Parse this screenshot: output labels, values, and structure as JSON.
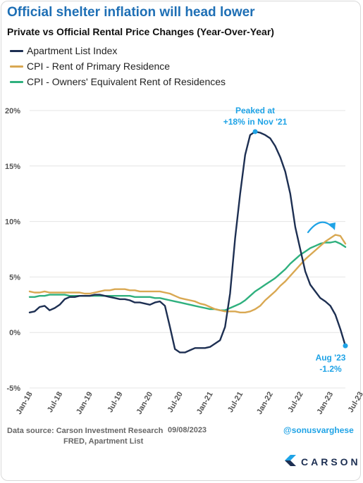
{
  "header": {
    "title": "Official shelter inflation will head lower",
    "subtitle": "Private vs Official Rental Price Changes (Year-Over-Year)"
  },
  "footer": {
    "source_line1": "Data source: Carson Investment Research",
    "source_date": "09/08/2023",
    "source_line2": "FRED, Apartment List",
    "handle": "@sonusvarghese",
    "brand": "CARSON"
  },
  "annotations": {
    "peak_line1": "Peaked at",
    "peak_line2": "+18% in Nov '21",
    "end_line1": "Aug '23",
    "end_line2": "-1.2%"
  },
  "colors": {
    "apartment": "#1d2f52",
    "cpi_rent": "#d9a852",
    "cpi_oer": "#2fb07e",
    "accent": "#1fa3e6",
    "title": "#1e6fb5"
  },
  "chart_data": {
    "type": "line",
    "x_start": "2018-01",
    "x_end": "2023-08",
    "x_tick_labels": [
      "Jan-18",
      "Jul-18",
      "Jan-19",
      "Jul-19",
      "Jan-20",
      "Jul-20",
      "Jan-21",
      "Jul-21",
      "Jan-22",
      "Jul-22",
      "Jan-23",
      "Jul-23"
    ],
    "y_tick_labels": [
      "20%",
      "15%",
      "10%",
      "5%",
      "0%",
      "-5%"
    ],
    "ylim": [
      -5,
      20
    ],
    "grid": "horizontal",
    "legend_position": "top-left",
    "series": [
      {
        "name": "Apartment List Index",
        "values": [
          1.8,
          1.9,
          2.3,
          2.4,
          2.0,
          2.2,
          2.5,
          3.0,
          3.2,
          3.2,
          3.3,
          3.3,
          3.3,
          3.4,
          3.4,
          3.3,
          3.2,
          3.1,
          3.0,
          3.0,
          2.9,
          2.7,
          2.7,
          2.6,
          2.5,
          2.7,
          2.8,
          2.4,
          0.5,
          -1.5,
          -1.8,
          -1.8,
          -1.6,
          -1.4,
          -1.4,
          -1.4,
          -1.3,
          -1.0,
          -0.7,
          0.5,
          3.5,
          8.5,
          12.5,
          16.0,
          17.8,
          18.1,
          18.0,
          17.8,
          17.5,
          16.8,
          15.8,
          14.5,
          12.5,
          9.5,
          7.5,
          5.5,
          4.3,
          3.7,
          3.1,
          2.8,
          2.4,
          1.6,
          0.3,
          -1.2
        ]
      },
      {
        "name": "CPI - Rent of Primary Residence",
        "values": [
          3.7,
          3.6,
          3.6,
          3.7,
          3.6,
          3.6,
          3.6,
          3.6,
          3.6,
          3.6,
          3.6,
          3.5,
          3.5,
          3.6,
          3.7,
          3.8,
          3.8,
          3.9,
          3.9,
          3.9,
          3.8,
          3.8,
          3.7,
          3.7,
          3.7,
          3.7,
          3.7,
          3.6,
          3.5,
          3.3,
          3.1,
          3.0,
          2.9,
          2.8,
          2.6,
          2.5,
          2.3,
          2.1,
          2.0,
          1.9,
          1.9,
          1.9,
          1.8,
          1.8,
          1.9,
          2.1,
          2.4,
          2.9,
          3.3,
          3.7,
          4.2,
          4.6,
          5.1,
          5.6,
          6.1,
          6.6,
          7.0,
          7.4,
          7.8,
          8.2,
          8.5,
          8.8,
          8.7,
          8.0
        ]
      },
      {
        "name": "CPI - Owners' Equivalent Rent of Residences",
        "values": [
          3.2,
          3.2,
          3.3,
          3.3,
          3.4,
          3.4,
          3.4,
          3.4,
          3.3,
          3.3,
          3.3,
          3.3,
          3.3,
          3.3,
          3.3,
          3.3,
          3.3,
          3.3,
          3.3,
          3.3,
          3.3,
          3.2,
          3.2,
          3.2,
          3.2,
          3.1,
          3.1,
          3.0,
          2.9,
          2.8,
          2.7,
          2.6,
          2.5,
          2.4,
          2.3,
          2.2,
          2.1,
          2.1,
          2.0,
          2.0,
          2.2,
          2.4,
          2.6,
          2.9,
          3.3,
          3.7,
          4.0,
          4.3,
          4.6,
          4.9,
          5.3,
          5.7,
          6.2,
          6.6,
          7.0,
          7.3,
          7.6,
          7.8,
          8.0,
          8.1,
          8.1,
          8.2,
          8.0,
          7.7
        ]
      }
    ]
  }
}
